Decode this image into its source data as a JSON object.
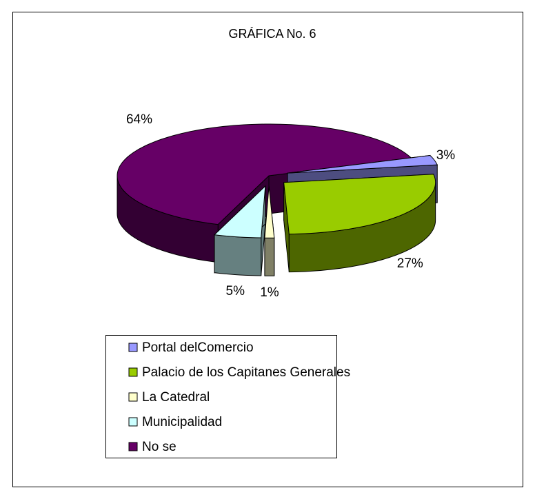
{
  "chart_data": {
    "type": "pie",
    "title": "GRÁFICA No. 6",
    "categories": [
      "Portal delComercio",
      "Palacio de los Capitanes Generales",
      "La Catedral",
      "Municipalidad",
      "No se"
    ],
    "values": [
      3,
      27,
      1,
      5,
      64
    ],
    "value_labels": [
      "3%",
      "27%",
      "1%",
      "5%",
      "64%"
    ],
    "colors": [
      "#9999ff",
      "#99cc00",
      "#ffffcc",
      "#ccffff",
      "#660066"
    ],
    "legend": "bottom"
  }
}
